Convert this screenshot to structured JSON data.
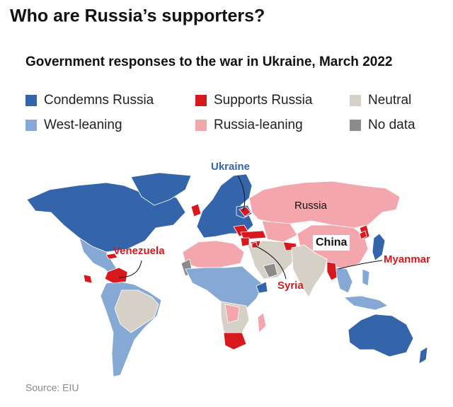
{
  "header": {
    "title": "Who are Russia’s supporters?",
    "subtitle": "Government responses to the war in Ukraine, March 2022"
  },
  "legend": [
    {
      "label": "Condemns Russia",
      "color": "#3465ab"
    },
    {
      "label": "Supports Russia",
      "color": "#d7191e"
    },
    {
      "label": "Neutral",
      "color": "#d6d1c6"
    },
    {
      "label": "West-leaning",
      "color": "#86a8d4"
    },
    {
      "label": "Russia-leaning",
      "color": "#f4a6ad"
    },
    {
      "label": "No data",
      "color": "#8b8b8b"
    }
  ],
  "map": {
    "labels": [
      {
        "text": "Ukraine",
        "color": "#3465ab"
      },
      {
        "text": "Russia",
        "color": "#111111"
      },
      {
        "text": "China",
        "color": "#111111"
      },
      {
        "text": "Venezuela",
        "color": "#d7191e"
      },
      {
        "text": "Syria",
        "color": "#d7191e"
      },
      {
        "text": "Myanmar",
        "color": "#d7191e"
      }
    ]
  },
  "source": "Source: EIU"
}
